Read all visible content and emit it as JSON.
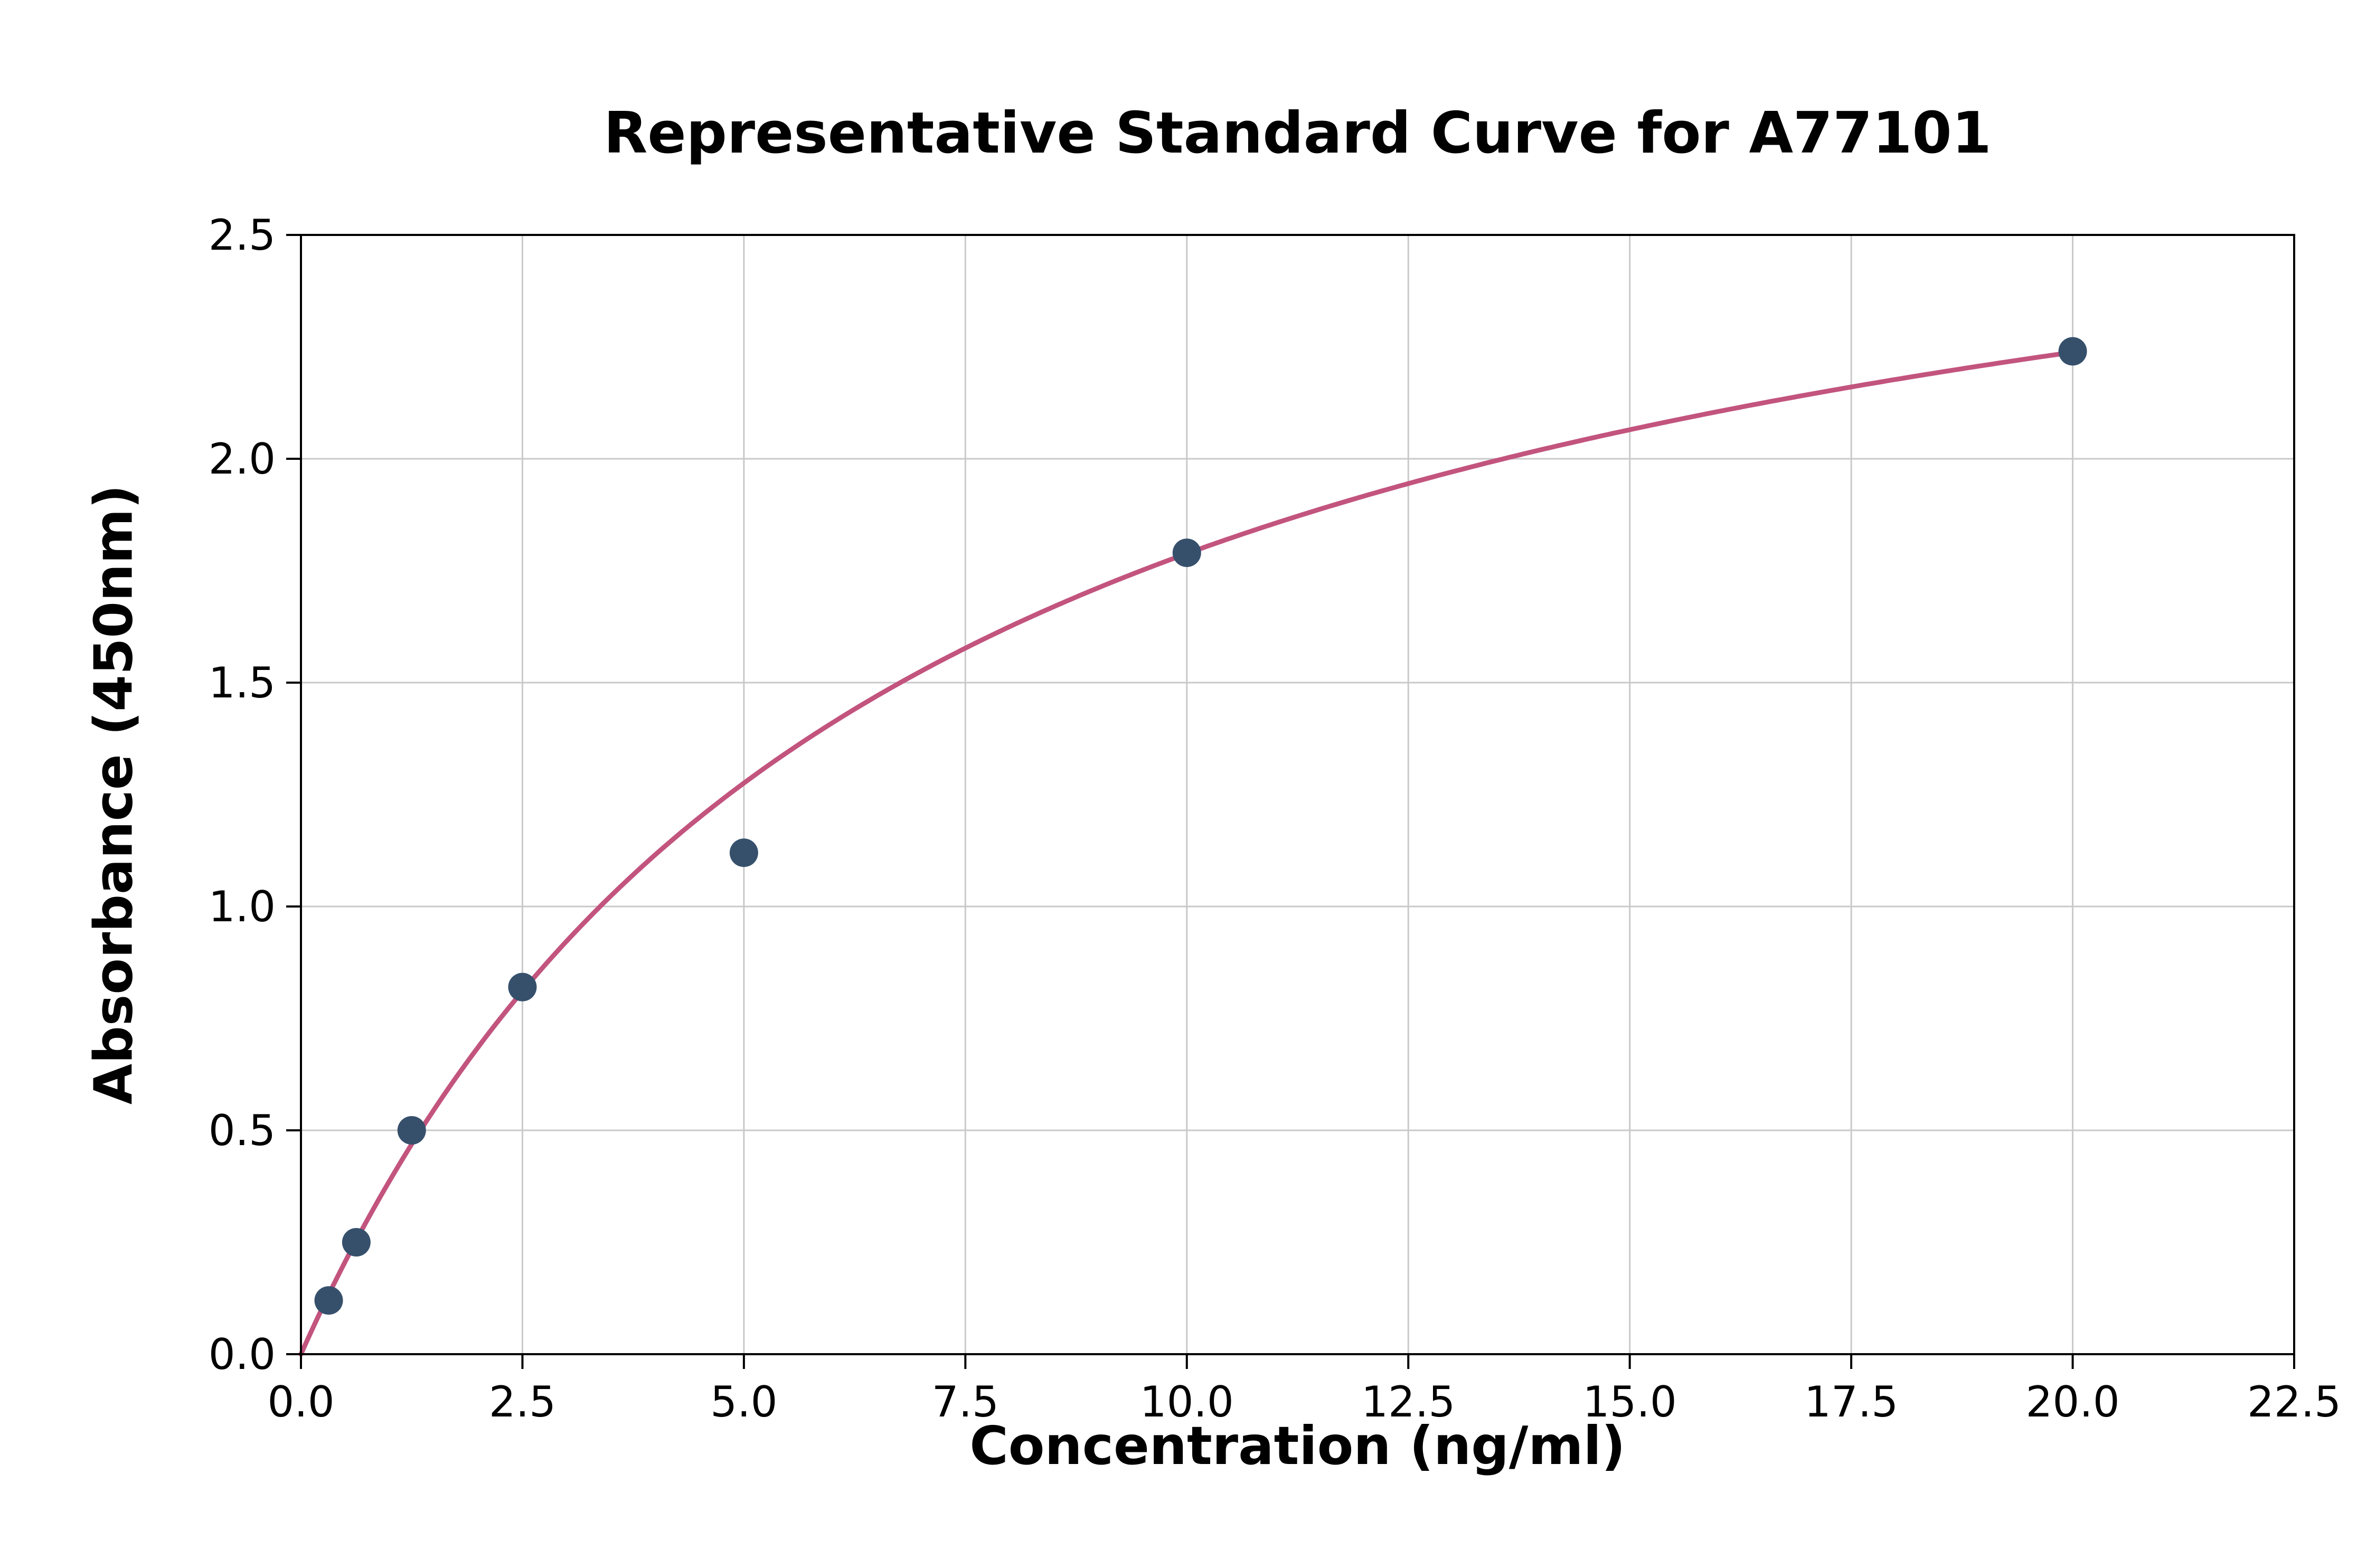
{
  "chart_data": {
    "type": "scatter",
    "title": "Representative Standard Curve for A77101",
    "xlabel": "Concentration (ng/ml)",
    "ylabel": "Absorbance (450nm)",
    "xlim": [
      0,
      22.5
    ],
    "ylim": [
      0,
      2.5
    ],
    "x_ticks": [
      0.0,
      2.5,
      5.0,
      7.5,
      10.0,
      12.5,
      15.0,
      17.5,
      20.0,
      22.5
    ],
    "x_tick_labels": [
      "0.0",
      "2.5",
      "5.0",
      "7.5",
      "10.0",
      "12.5",
      "15.0",
      "17.5",
      "20.0",
      "22.5"
    ],
    "y_ticks": [
      0.0,
      0.5,
      1.0,
      1.5,
      2.0,
      2.5
    ],
    "y_tick_labels": [
      "0.0",
      "0.5",
      "1.0",
      "1.5",
      "2.0",
      "2.5"
    ],
    "grid": true,
    "legend": "none",
    "points": {
      "x": [
        0.313,
        0.625,
        1.25,
        2.5,
        5.0,
        10.0,
        20.0
      ],
      "y": [
        0.12,
        0.25,
        0.5,
        0.82,
        1.12,
        1.79,
        2.24
      ]
    },
    "fit_curve": {
      "model": "y = a*x / (b + x)",
      "a": 2.99,
      "b": 6.72,
      "x_range": [
        0,
        20
      ]
    },
    "colors": {
      "point": "#36506c",
      "curve": "#c2547e",
      "grid": "#c9c9c9",
      "axis": "#000000",
      "background": "#ffffff"
    }
  }
}
